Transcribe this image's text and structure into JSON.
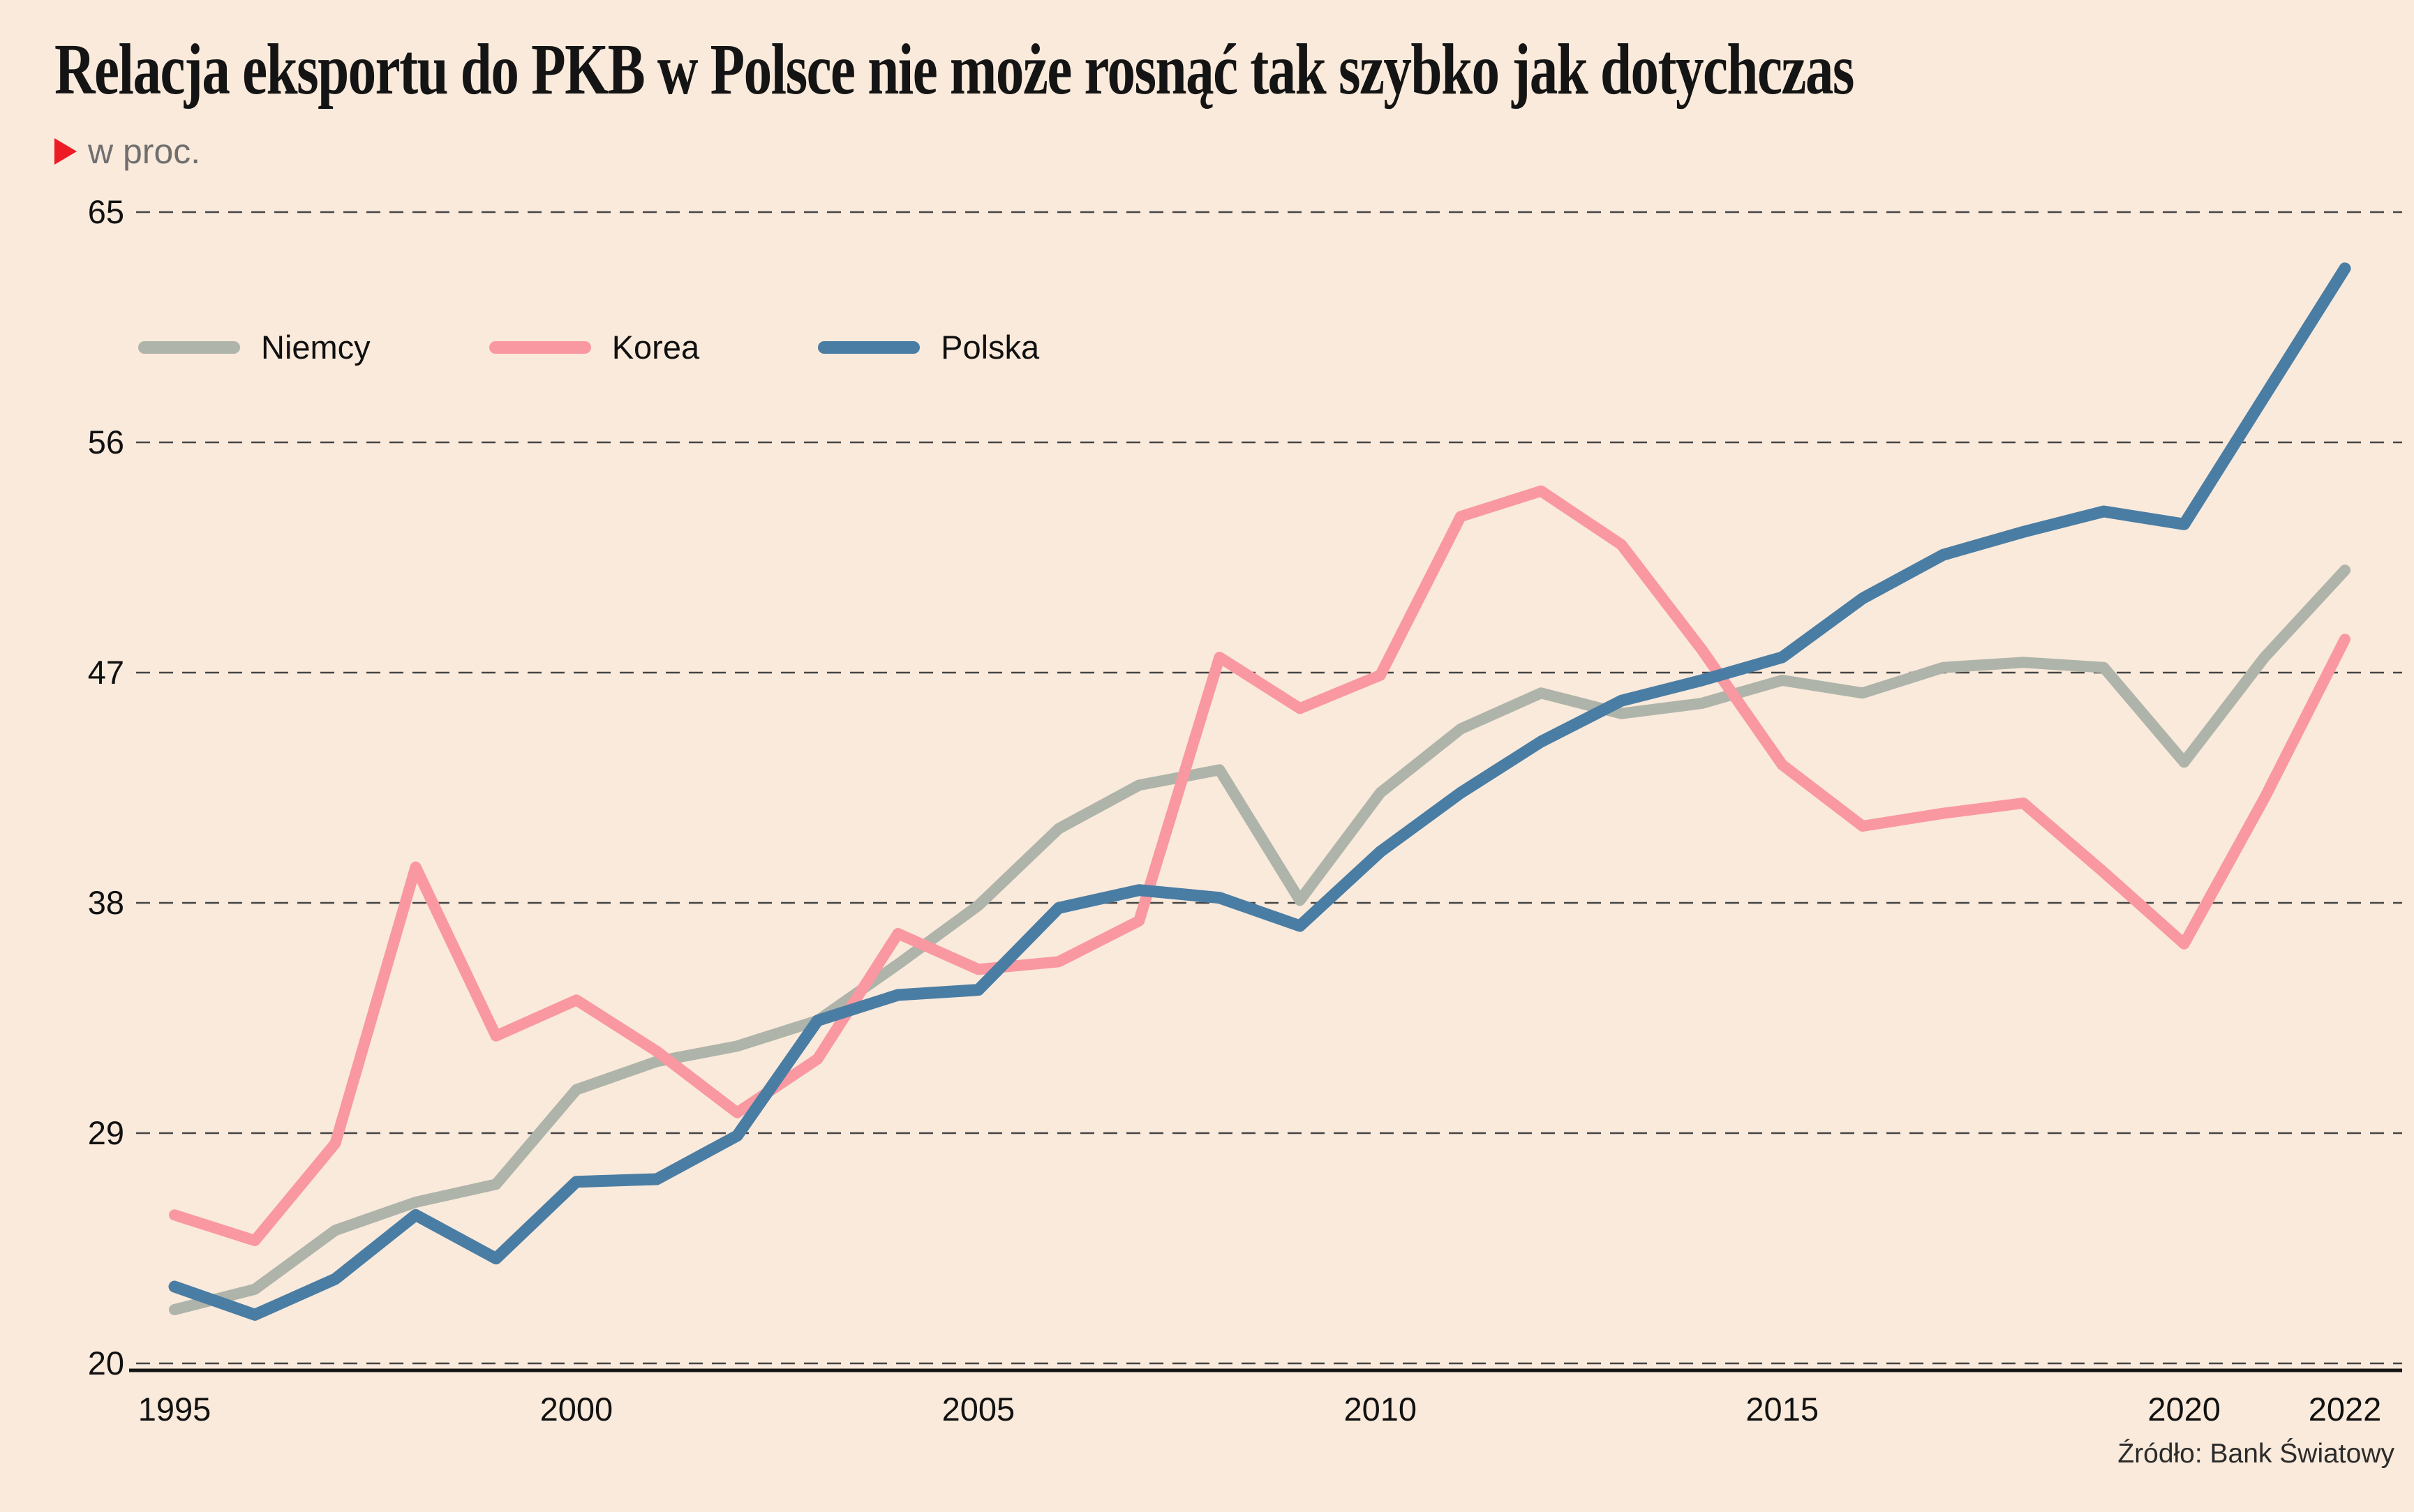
{
  "header": {
    "title": "Relacja eksportu do PKB w Polsce nie może rosnąć tak szybko jak dotychczas",
    "subtitle": "w proc.",
    "marker_color": "#ed1c24"
  },
  "footer": {
    "source": "Źródło: Bank Światowy"
  },
  "colors": {
    "background": "#faeadb",
    "grid": "#454545",
    "axis": "#141414",
    "text": "#111111"
  },
  "chart_data": {
    "type": "line",
    "title": "Relacja eksportu do PKB w Polsce nie może rosnąć tak szybko jak dotychczas",
    "ylabel": "w proc.",
    "xlabel": "",
    "ylim": [
      20,
      65
    ],
    "yticks": [
      65,
      56,
      47,
      38,
      29,
      20
    ],
    "xticks": [
      1995,
      2000,
      2005,
      2010,
      2015,
      2020,
      2022
    ],
    "grid": "dashed horizontal",
    "legend_position": "top-left inside plot",
    "x": [
      1995,
      1996,
      1997,
      1998,
      1999,
      2000,
      2001,
      2002,
      2003,
      2004,
      2005,
      2006,
      2007,
      2008,
      2009,
      2010,
      2011,
      2012,
      2013,
      2014,
      2015,
      2016,
      2017,
      2018,
      2019,
      2020,
      2021,
      2022
    ],
    "series": [
      {
        "name": "Niemcy",
        "color": "#aeb4aa",
        "values": [
          22.1,
          22.9,
          25.2,
          26.3,
          27.0,
          30.7,
          31.8,
          32.4,
          33.4,
          35.6,
          37.9,
          40.9,
          42.6,
          43.2,
          38.1,
          42.3,
          44.8,
          46.2,
          45.4,
          45.8,
          46.7,
          46.2,
          47.2,
          47.4,
          47.2,
          43.5,
          47.6,
          51.0
        ]
      },
      {
        "name": "Korea",
        "color": "#f998a0",
        "values": [
          25.8,
          24.8,
          28.6,
          39.4,
          32.8,
          34.2,
          32.2,
          29.8,
          31.9,
          36.8,
          35.4,
          35.7,
          37.3,
          47.6,
          45.6,
          46.9,
          53.1,
          54.1,
          52.0,
          47.9,
          43.4,
          41.0,
          41.5,
          41.9,
          39.2,
          36.4,
          42.1,
          48.3
        ]
      },
      {
        "name": "Polska",
        "color": "#4a7da4",
        "values": [
          23.0,
          21.9,
          23.3,
          25.8,
          24.1,
          27.1,
          27.2,
          28.9,
          33.4,
          34.4,
          34.6,
          37.8,
          38.5,
          38.2,
          37.1,
          40.0,
          42.3,
          44.3,
          45.9,
          46.7,
          47.6,
          49.9,
          51.6,
          52.5,
          53.3,
          52.8,
          57.8,
          62.8
        ]
      }
    ]
  }
}
